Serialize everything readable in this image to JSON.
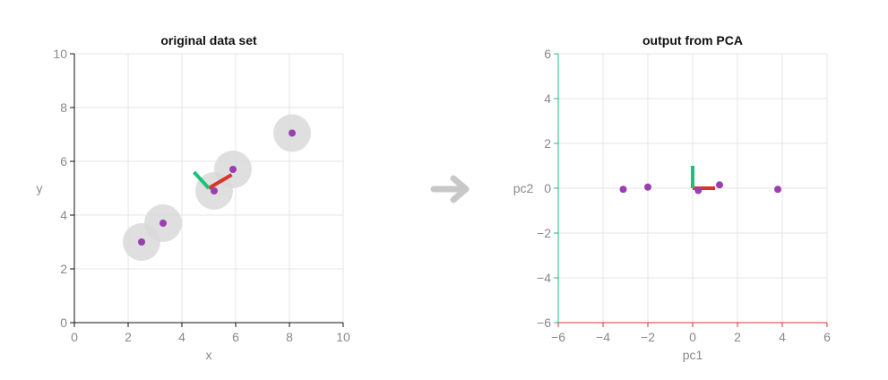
{
  "colors": {
    "point": "#9b3fb0",
    "halo": "#d9d9d9",
    "pc1": "#d9342b",
    "pc2": "#19c27a",
    "grid": "#e4e4e4",
    "axis": "#111111",
    "tick_text": "#888888",
    "arrow": "#c8c8c8",
    "pc1_label": "#f09a90",
    "pc2_label": "#3fd39b"
  },
  "transition": {
    "icon": "arrow-right-icon"
  },
  "chart_data": [
    {
      "type": "scatter",
      "title": "original data set",
      "xlabel": "x",
      "ylabel": "y",
      "xlim": [
        0,
        10
      ],
      "ylim": [
        0,
        10
      ],
      "xticks": [
        "0",
        "2",
        "4",
        "6",
        "8",
        "10"
      ],
      "yticks": [
        "0",
        "2",
        "4",
        "6",
        "8",
        "10"
      ],
      "grid": true,
      "points": [
        {
          "x": 2.5,
          "y": 3.0
        },
        {
          "x": 3.3,
          "y": 3.7
        },
        {
          "x": 5.2,
          "y": 4.9
        },
        {
          "x": 5.9,
          "y": 5.7
        },
        {
          "x": 8.1,
          "y": 7.05
        }
      ],
      "halo_radius": 0.7,
      "components": [
        {
          "name": "pc1",
          "from": {
            "x": 5.0,
            "y": 5.0
          },
          "to": {
            "x": 5.85,
            "y": 5.5
          }
        },
        {
          "name": "pc2",
          "from": {
            "x": 5.0,
            "y": 5.0
          },
          "to": {
            "x": 4.45,
            "y": 5.6
          }
        }
      ]
    },
    {
      "type": "scatter",
      "title": "output from PCA",
      "xlabel": "pc1",
      "ylabel": "pc2",
      "xlim": [
        -6,
        6
      ],
      "ylim": [
        -6,
        6
      ],
      "xticks": [
        "−6",
        "−4",
        "−2",
        "0",
        "2",
        "4",
        "6"
      ],
      "yticks": [
        "−6",
        "−4",
        "−2",
        "0",
        "2",
        "4",
        "6"
      ],
      "grid": true,
      "points": [
        {
          "x": -3.1,
          "y": -0.05
        },
        {
          "x": -2.0,
          "y": 0.05
        },
        {
          "x": 0.25,
          "y": -0.1
        },
        {
          "x": 1.2,
          "y": 0.15
        },
        {
          "x": 3.8,
          "y": -0.05
        }
      ],
      "components": [
        {
          "name": "pc1",
          "from": {
            "x": 0,
            "y": 0
          },
          "to": {
            "x": 1.0,
            "y": 0
          }
        },
        {
          "name": "pc2",
          "from": {
            "x": 0,
            "y": 0
          },
          "to": {
            "x": 0,
            "y": 1.0
          }
        }
      ]
    }
  ]
}
